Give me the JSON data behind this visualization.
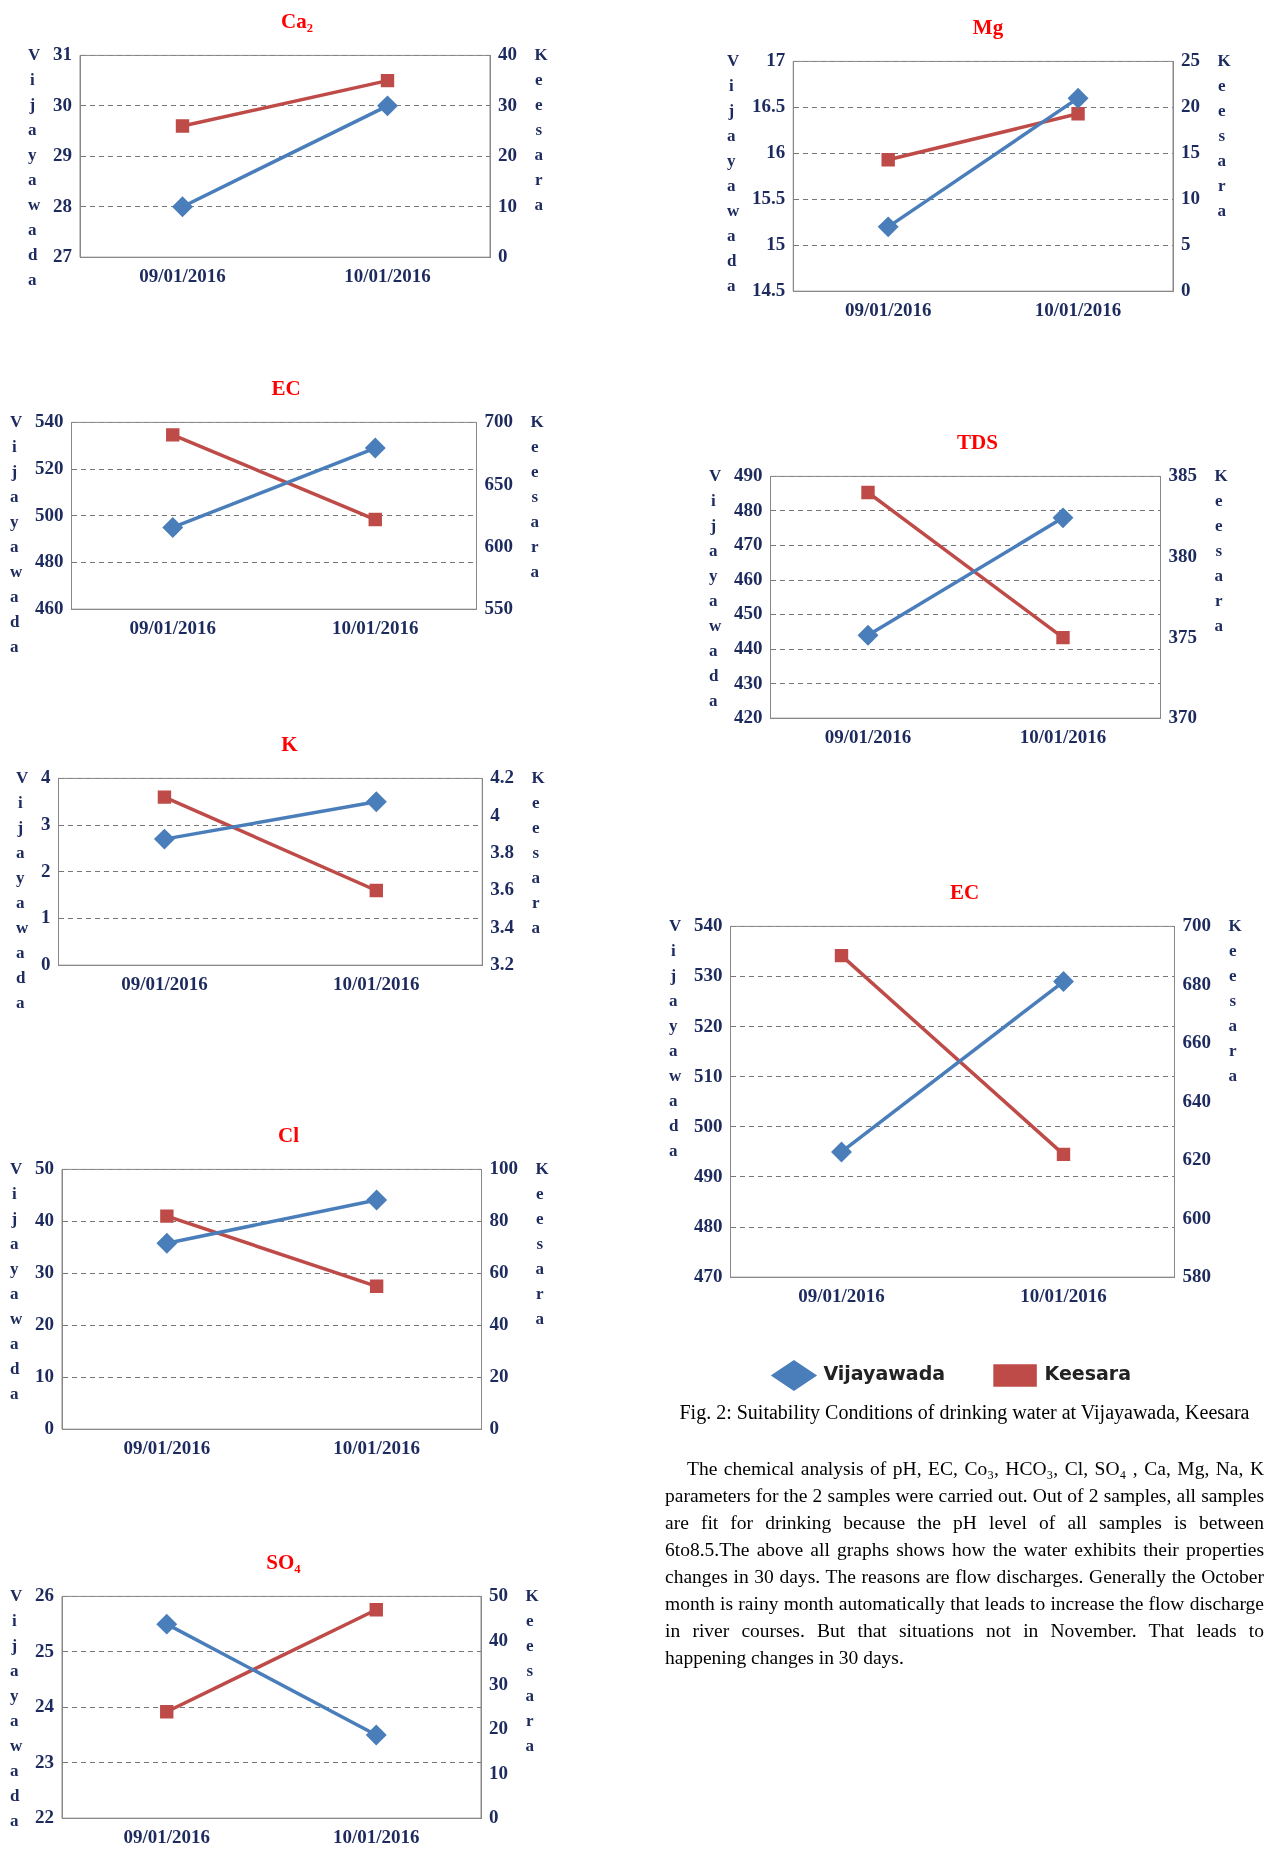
{
  "chart_data": [
    {
      "type": "line",
      "title": "Ca₂",
      "ylabel": "Vijayawada",
      "y2label": "Keesara",
      "categories": [
        "09/01/2016",
        "10/01/2016"
      ],
      "series": [
        {
          "color": "#4a7ebb",
          "marker": "diamond",
          "values": [
            28,
            30
          ]
        },
        {
          "color": "#be4b48",
          "marker": "square",
          "axis": "y2",
          "values": [
            26,
            35
          ]
        }
      ],
      "ylim": [
        27,
        31
      ],
      "yticks": [
        27,
        28,
        29,
        30,
        31
      ],
      "y2lim": [
        0,
        40
      ],
      "y2ticks": [
        0,
        10,
        20,
        30,
        40
      ],
      "grid": "y",
      "line_style": "solid"
    },
    {
      "type": "line",
      "title": "Mg",
      "ylabel": "Vijayawada",
      "y2label": "Keesara",
      "categories": [
        "09/01/2016",
        "10/01/2016"
      ],
      "series": [
        {
          "color": "#4a7ebb",
          "marker": "diamond",
          "values": [
            15.2,
            16.6
          ]
        },
        {
          "color": "#be4b48",
          "marker": "square",
          "axis": "y2",
          "values": [
            14.3,
            19.3
          ]
        }
      ],
      "ylim": [
        14.5,
        17
      ],
      "yticks": [
        14.5,
        15,
        15.5,
        16,
        16.5,
        17
      ],
      "y2lim": [
        0,
        25
      ],
      "y2ticks": [
        0,
        5,
        10,
        15,
        20,
        25
      ],
      "grid": "y",
      "line_style": "solid"
    },
    {
      "type": "line",
      "title": "EC",
      "ylabel": "Vijayawada",
      "y2label": "Keesara",
      "categories": [
        "09/01/2016",
        "10/01/2016"
      ],
      "series": [
        {
          "color": "#4a7ebb",
          "marker": "diamond",
          "values": [
            495,
            529
          ]
        },
        {
          "color": "#be4b48",
          "marker": "square",
          "axis": "y2",
          "values": [
            690,
            622
          ]
        }
      ],
      "ylim": [
        460,
        540
      ],
      "yticks": [
        460,
        480,
        500,
        520,
        540
      ],
      "y2lim": [
        550,
        700
      ],
      "y2ticks": [
        550,
        600,
        650,
        700
      ],
      "grid": "y",
      "line_style": "solid"
    },
    {
      "type": "line",
      "title": "TDS",
      "ylabel": "Vijayawada",
      "y2label": "Keesara",
      "categories": [
        "09/01/2016",
        "10/01/2016"
      ],
      "series": [
        {
          "color": "#4a7ebb",
          "marker": "diamond",
          "values": [
            444,
            478
          ]
        },
        {
          "color": "#be4b48",
          "marker": "square",
          "axis": "y2",
          "values": [
            384,
            375
          ]
        }
      ],
      "ylim": [
        420,
        490
      ],
      "yticks": [
        420,
        430,
        440,
        450,
        460,
        470,
        480,
        490
      ],
      "y2lim": [
        370,
        385
      ],
      "y2ticks": [
        370,
        375,
        380,
        385
      ],
      "grid": "y",
      "line_style": "solid"
    },
    {
      "type": "line",
      "title": "K",
      "ylabel": "Vijayawada",
      "y2label": "Keesara",
      "categories": [
        "09/01/2016",
        "10/01/2016"
      ],
      "series": [
        {
          "color": "#4a7ebb",
          "marker": "diamond",
          "values": [
            2.7,
            3.5
          ]
        },
        {
          "color": "#be4b48",
          "marker": "square",
          "axis": "y2",
          "values": [
            4.1,
            3.6
          ]
        }
      ],
      "ylim": [
        0,
        4
      ],
      "yticks": [
        0,
        1,
        2,
        3,
        4
      ],
      "y2lim": [
        3.2,
        4.2
      ],
      "y2ticks": [
        3.2,
        3.4,
        3.6,
        3.8,
        4,
        {
          "value": 4.2,
          "label": "4.2"
        }
      ],
      "grid": "y",
      "line_style": "solid"
    },
    {
      "type": "line",
      "title": "EC",
      "ylabel": "Vijayawada",
      "y2label": "Keesara",
      "categories": [
        "09/01/2016",
        "10/01/2016"
      ],
      "series": [
        {
          "name": "Vijayawada",
          "color": "#4a7ebb",
          "marker": "diamond",
          "values": [
            495,
            529
          ]
        },
        {
          "name": "Keesara",
          "color": "#be4b48",
          "marker": "square",
          "axis": "y2",
          "values": [
            690,
            622
          ]
        }
      ],
      "ylim": [
        470,
        540
      ],
      "yticks": [
        470,
        480,
        490,
        500,
        510,
        520,
        530,
        540
      ],
      "y2lim": [
        580,
        700
      ],
      "y2ticks": [
        580,
        600,
        620,
        640,
        660,
        680,
        700
      ],
      "grid": "y",
      "line_style": "solid",
      "legend": "bottom",
      "annotations": [
        "Fig. 2: Suitability Conditions of drinking water at Vijayawada, Keesara",
        "The chemical analysis of pH, EC, Co₃, HCO₃, Cl, SO₄ , Ca, Mg, Na, K parameters for the 2 samples were carried out. Out of 2 samples, all samples are fit for drinking because the pH level of all samples is between 6to8.5.The above all graphs shows how the water exhibits their properties changes in 30 days. The reasons are flow discharges. Generally the October month is rainy month automatically that leads to increase the flow discharge in river courses. But that situations not in November. That leads to happening changes in 30 days."
      ]
    },
    {
      "type": "line",
      "title": "Cl",
      "ylabel": "Vijayawada",
      "y2label": "Keesara",
      "categories": [
        "09/01/2016",
        "10/01/2016"
      ],
      "series": [
        {
          "color": "#4a7ebb",
          "marker": "diamond",
          "values": [
            35.8,
            44.1
          ]
        },
        {
          "color": "#be4b48",
          "marker": "square",
          "axis": "y2",
          "values": [
            82,
            55
          ]
        }
      ],
      "ylim": [
        0,
        50
      ],
      "yticks": [
        0,
        10,
        20,
        30,
        40,
        50
      ],
      "y2lim": [
        0,
        100
      ],
      "y2ticks": [
        0,
        20,
        40,
        60,
        80,
        100
      ],
      "grid": "y",
      "line_style": "solid"
    },
    {
      "type": "line",
      "title": "SO₄",
      "ylabel": "Vijayawada",
      "y2label": "Keesara",
      "categories": [
        "09/01/2016",
        "10/01/2016"
      ],
      "series": [
        {
          "color": "#4a7ebb",
          "marker": "diamond",
          "values": [
            25.5,
            23.5
          ]
        },
        {
          "color": "#be4b48",
          "marker": "square",
          "axis": "y2",
          "values": [
            24,
            47
          ]
        }
      ],
      "ylim": [
        22,
        26
      ],
      "yticks": [
        22,
        23,
        24,
        25,
        26
      ],
      "y2lim": [
        0,
        50
      ],
      "y2ticks": [
        0,
        10,
        20,
        30,
        40,
        50
      ],
      "grid": "y",
      "line_style": "solid"
    }
  ]
}
